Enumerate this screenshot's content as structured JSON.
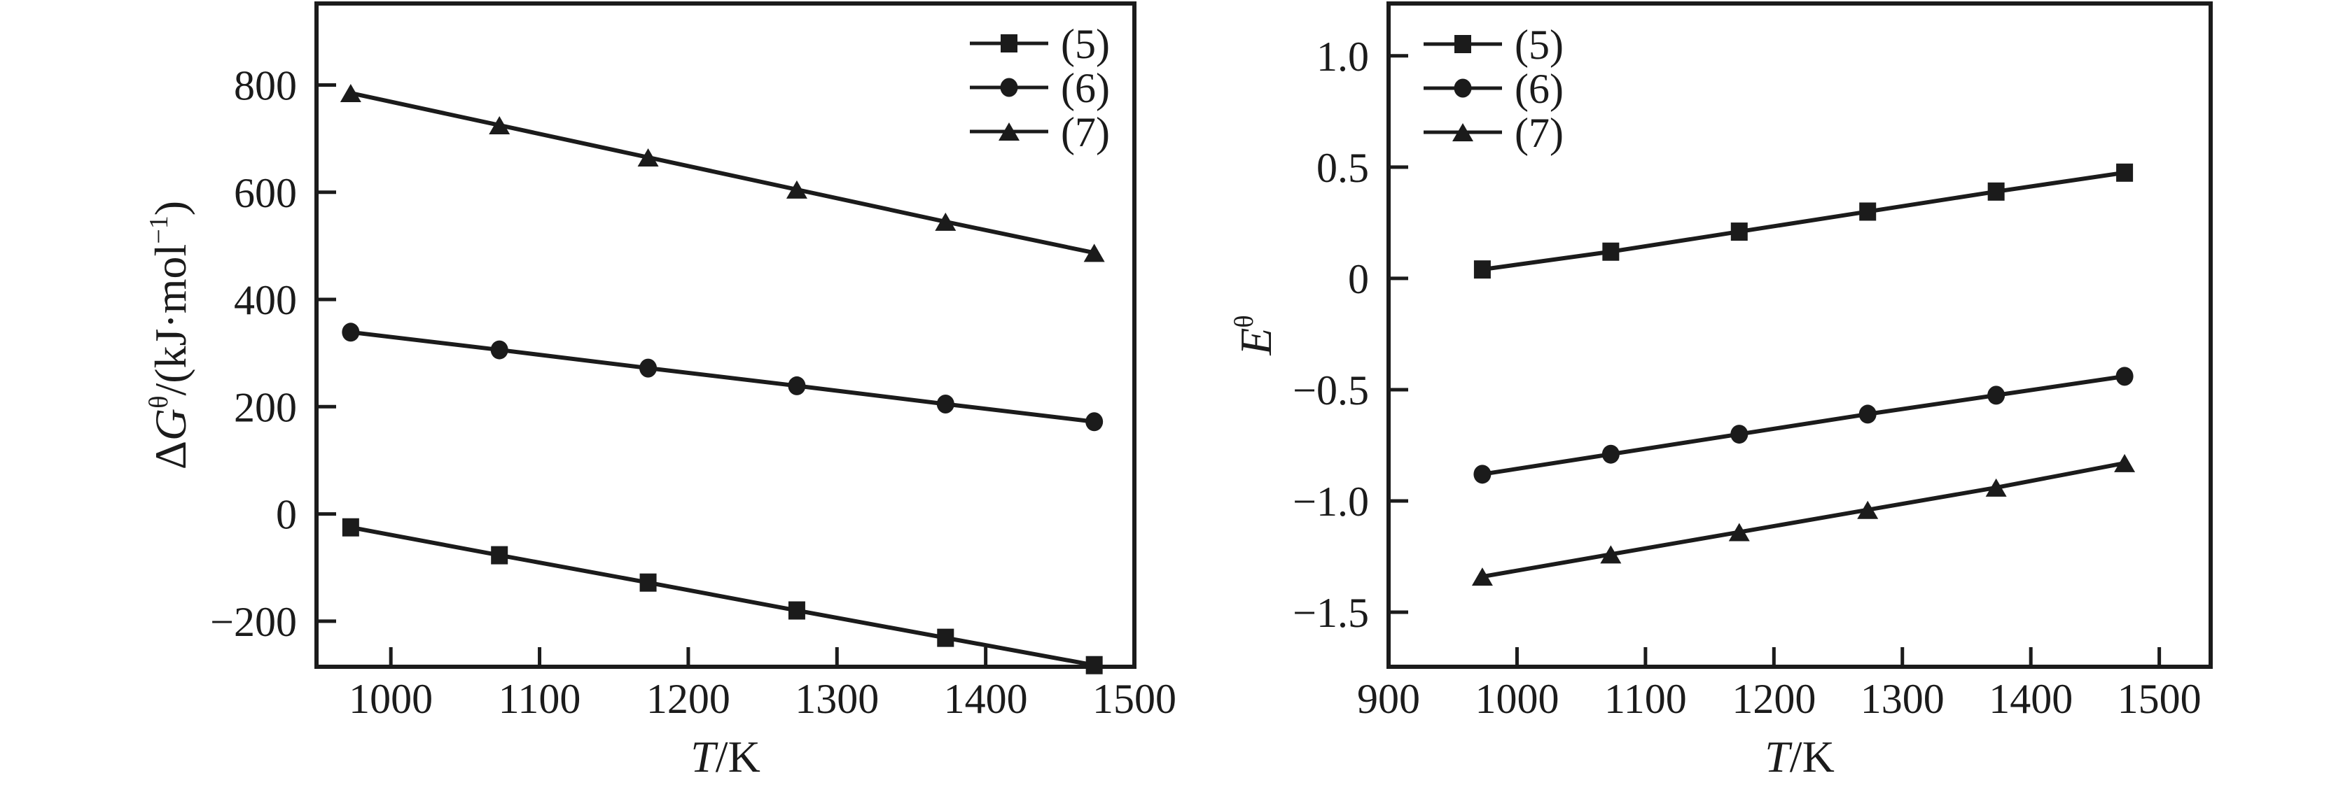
{
  "figure": {
    "background": "#ffffff",
    "ink": "#1b1b1b",
    "description": "Two-panel thermodynamics line chart, black on white, serif labels"
  },
  "chart_data": [
    {
      "type": "line",
      "title": "",
      "xlabel_parts": [
        {
          "t": "T",
          "italic": true
        },
        {
          "t": "/K"
        }
      ],
      "ylabel_parts": [
        {
          "t": "Δ"
        },
        {
          "t": "G",
          "italic": true
        },
        {
          "t": "θ",
          "sup": true
        },
        {
          "t": "/(kJ·mol"
        },
        {
          "t": "−1",
          "sup": true
        },
        {
          "t": ")"
        }
      ],
      "xlim": [
        950,
        1500
      ],
      "ylim": [
        -285,
        952
      ],
      "grid": false,
      "xticks": {
        "values": [
          1000,
          1100,
          1200,
          1300,
          1400,
          1500
        ],
        "labels": [
          "1000",
          "1100",
          "1200",
          "1300",
          "1400",
          "1500"
        ]
      },
      "yticks": {
        "values": [
          800,
          600,
          400,
          200,
          0,
          -200
        ],
        "labels": [
          "800",
          "600",
          "400",
          "200",
          "0",
          "−200"
        ]
      },
      "legend": {
        "position": "top-right-inside",
        "entries": [
          {
            "label": "(5)",
            "marker": "square"
          },
          {
            "label": "(6)",
            "marker": "circle"
          },
          {
            "label": "(7)",
            "marker": "triangle"
          }
        ]
      },
      "x": [
        973,
        1073,
        1173,
        1273,
        1373,
        1473
      ],
      "series": [
        {
          "name": "(5)",
          "marker": "square",
          "values": [
            -25,
            -77,
            -128,
            -180,
            -231,
            -282
          ]
        },
        {
          "name": "(6)",
          "marker": "circle",
          "values": [
            339,
            306,
            272,
            239,
            205,
            172
          ]
        },
        {
          "name": "(7)",
          "marker": "triangle",
          "values": [
            785,
            725,
            665,
            605,
            545,
            487
          ]
        }
      ]
    },
    {
      "type": "line",
      "title": "",
      "xlabel_parts": [
        {
          "t": "T",
          "italic": true
        },
        {
          "t": "/K"
        }
      ],
      "ylabel_parts": [
        {
          "t": "E",
          "italic": true
        },
        {
          "t": "θ",
          "sup": true
        }
      ],
      "xlim": [
        900,
        1540
      ],
      "ylim": [
        -1.745,
        1.235
      ],
      "grid": false,
      "xticks": {
        "values": [
          900,
          1000,
          1100,
          1200,
          1300,
          1400,
          1500
        ],
        "labels": [
          "900",
          "1000",
          "1100",
          "1200",
          "1300",
          "1400",
          "1500"
        ]
      },
      "yticks": {
        "values": [
          1.0,
          0.5,
          0,
          -0.5,
          -1.0,
          -1.5
        ],
        "labels": [
          "1.0",
          "0.5",
          "0",
          "−0.5",
          "−1.0",
          "−1.5"
        ]
      },
      "legend": {
        "position": "top-left-inside",
        "entries": [
          {
            "label": "(5)",
            "marker": "square"
          },
          {
            "label": "(6)",
            "marker": "circle"
          },
          {
            "label": "(7)",
            "marker": "triangle"
          }
        ]
      },
      "x": [
        973,
        1073,
        1173,
        1273,
        1373,
        1473
      ],
      "series": [
        {
          "name": "(5)",
          "marker": "square",
          "values": [
            0.04,
            0.12,
            0.21,
            0.3,
            0.39,
            0.475
          ]
        },
        {
          "name": "(6)",
          "marker": "circle",
          "values": [
            -0.88,
            -0.79,
            -0.7,
            -0.61,
            -0.525,
            -0.44
          ]
        },
        {
          "name": "(7)",
          "marker": "triangle",
          "values": [
            -1.34,
            -1.24,
            -1.14,
            -1.04,
            -0.94,
            -0.83
          ]
        }
      ]
    }
  ]
}
